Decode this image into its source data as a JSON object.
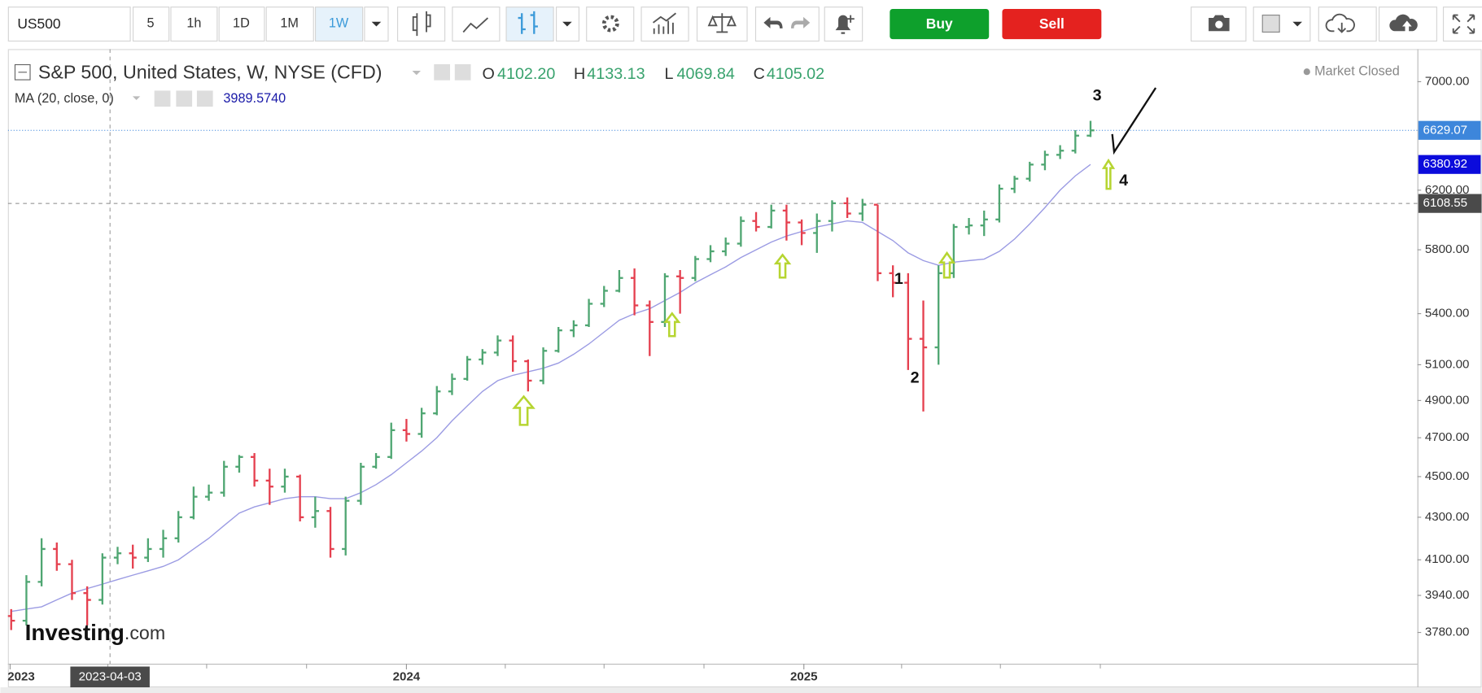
{
  "toolbar": {
    "symbol": "US500",
    "intervals": [
      "5",
      "1h",
      "1D",
      "1M",
      "1W"
    ],
    "buy": "Buy",
    "sell": "Sell"
  },
  "branding": {
    "name": "Investing",
    "suffix": ".com"
  },
  "chart_data": {
    "type": "ohlc",
    "title": "S&P 500, United States, W, NYSE (CFD)",
    "legend": {
      "o_label": "O",
      "o": {
        "value": 4102.2,
        "label": "4102.20"
      },
      "h_label": "H",
      "h": 4133.13,
      "l_label": "L",
      "l": 4069.84,
      "c_label": "C",
      "c": 4105.02
    },
    "status": "Market Closed",
    "up_color": "#4fa672",
    "down_color": "#e5404f",
    "log_scale": true,
    "x": [
      "2023-01-02",
      "2023-01-16",
      "2023-01-30",
      "2023-02-13",
      "2023-02-27",
      "2023-03-13",
      "2023-03-27",
      "2023-04-10",
      "2023-04-24",
      "2023-05-08",
      "2023-05-22",
      "2023-06-05",
      "2023-06-19",
      "2023-07-03",
      "2023-07-17",
      "2023-07-31",
      "2023-08-14",
      "2023-08-28",
      "2023-09-11",
      "2023-09-25",
      "2023-10-09",
      "2023-10-23",
      "2023-11-06",
      "2023-11-20",
      "2023-12-04",
      "2023-12-18",
      "2024-01-01",
      "2024-01-15",
      "2024-01-29",
      "2024-02-12",
      "2024-02-26",
      "2024-03-11",
      "2024-03-25",
      "2024-04-08",
      "2024-04-22",
      "2024-05-06",
      "2024-05-20",
      "2024-06-03",
      "2024-06-17",
      "2024-07-01",
      "2024-07-15",
      "2024-07-29",
      "2024-08-12",
      "2024-08-26",
      "2024-09-09",
      "2024-09-23",
      "2024-10-07",
      "2024-10-21",
      "2024-11-04",
      "2024-11-18",
      "2024-12-02",
      "2024-12-16",
      "2024-12-30",
      "2025-01-13",
      "2025-01-27",
      "2025-02-10",
      "2025-02-24",
      "2025-03-10",
      "2025-03-24",
      "2025-04-07",
      "2025-04-21",
      "2025-05-05",
      "2025-05-19",
      "2025-06-02",
      "2025-06-16",
      "2025-06-30",
      "2025-07-14",
      "2025-07-28",
      "2025-08-11",
      "2025-08-25",
      "2025-09-08",
      "2025-09-22"
    ],
    "open": [
      3850,
      3830,
      4000,
      4150,
      4080,
      3950,
      3920,
      4110,
      4130,
      4110,
      4150,
      4200,
      4300,
      4400,
      4420,
      4550,
      4600,
      4480,
      4450,
      4500,
      4300,
      4330,
      4150,
      4380,
      4550,
      4600,
      4740,
      4720,
      4830,
      4950,
      5020,
      5130,
      5170,
      5240,
      5120,
      5010,
      5180,
      5300,
      5330,
      5460,
      5540,
      5620,
      5450,
      5350,
      5630,
      5620,
      5740,
      5790,
      5840,
      5990,
      5950,
      6060,
      5980,
      5910,
      5990,
      6110,
      6040,
      6100,
      5650,
      5590,
      5250,
      5200,
      5650,
      5950,
      5960,
      6000,
      6210,
      6280,
      6380,
      6450,
      6480,
      6590
    ],
    "high": [
      3880,
      4030,
      4200,
      4180,
      4100,
      3980,
      4130,
      4160,
      4170,
      4200,
      4240,
      4330,
      4450,
      4460,
      4580,
      4610,
      4620,
      4540,
      4540,
      4510,
      4400,
      4350,
      4400,
      4570,
      4620,
      4780,
      4800,
      4860,
      4980,
      5050,
      5150,
      5190,
      5270,
      5270,
      5130,
      5200,
      5320,
      5360,
      5490,
      5570,
      5670,
      5680,
      5480,
      5650,
      5670,
      5760,
      5830,
      5880,
      6020,
      6050,
      6100,
      6100,
      6000,
      6040,
      6130,
      6150,
      6140,
      6100,
      5700,
      5650,
      5480,
      5700,
      5970,
      6010,
      6060,
      6240,
      6300,
      6400,
      6480,
      6520,
      6630,
      6700
    ],
    "low": [
      3790,
      3810,
      3980,
      4050,
      3920,
      3810,
      3900,
      4080,
      4060,
      4090,
      4110,
      4180,
      4290,
      4380,
      4400,
      4520,
      4450,
      4360,
      4420,
      4280,
      4250,
      4110,
      4120,
      4360,
      4540,
      4590,
      4680,
      4700,
      4820,
      4930,
      5010,
      5100,
      5150,
      5060,
      4950,
      4990,
      5170,
      5260,
      5320,
      5440,
      5530,
      5390,
      5150,
      5320,
      5400,
      5600,
      5720,
      5760,
      5820,
      5920,
      5940,
      5860,
      5830,
      5780,
      5920,
      6010,
      5990,
      5600,
      5500,
      5070,
      4840,
      5100,
      5620,
      5900,
      5890,
      5980,
      6180,
      6260,
      6340,
      6420,
      6460,
      6580
    ],
    "close": [
      3830,
      4000,
      4150,
      4080,
      3950,
      3920,
      4110,
      4130,
      4110,
      4150,
      4200,
      4300,
      4400,
      4420,
      4550,
      4600,
      4480,
      4450,
      4500,
      4300,
      4330,
      4150,
      4380,
      4550,
      4600,
      4740,
      4720,
      4830,
      4950,
      5020,
      5130,
      5170,
      5240,
      5120,
      5010,
      5180,
      5300,
      5330,
      5460,
      5540,
      5620,
      5450,
      5350,
      5630,
      5620,
      5740,
      5790,
      5840,
      5990,
      5950,
      6060,
      5980,
      5910,
      5990,
      6110,
      6040,
      6100,
      5650,
      5590,
      5250,
      5200,
      5650,
      5950,
      5960,
      6000,
      6210,
      6280,
      6380,
      6450,
      6480,
      6590,
      6629
    ],
    "ma": {
      "name": "MA (20, close, 0)",
      "color": "#9b9be3",
      "legend_value": {
        "value": 3989.574,
        "label": "3989.5740"
      },
      "values": [
        3870,
        3880,
        3890,
        3920,
        3950,
        3970,
        3990,
        4010,
        4030,
        4050,
        4070,
        4100,
        4150,
        4200,
        4260,
        4320,
        4350,
        4370,
        4390,
        4400,
        4400,
        4390,
        4390,
        4420,
        4460,
        4510,
        4570,
        4630,
        4700,
        4790,
        4870,
        4950,
        5010,
        5040,
        5060,
        5080,
        5110,
        5160,
        5220,
        5290,
        5360,
        5400,
        5430,
        5480,
        5530,
        5590,
        5640,
        5690,
        5750,
        5800,
        5850,
        5890,
        5920,
        5950,
        5970,
        5990,
        5980,
        5920,
        5860,
        5780,
        5730,
        5700,
        5720,
        5730,
        5740,
        5790,
        5870,
        5970,
        6080,
        6200,
        6300,
        6381
      ]
    },
    "ylim": [
      3650,
      7260
    ],
    "yticks": [
      {
        "value": 3780,
        "label": "3780.00"
      },
      {
        "value": 3940,
        "label": "3940.00"
      },
      {
        "value": 4100,
        "label": "4100.00"
      },
      {
        "value": 4300,
        "label": "4300.00"
      },
      {
        "value": 4500,
        "label": "4500.00"
      },
      {
        "value": 4700,
        "label": "4700.00"
      },
      {
        "value": 4900,
        "label": "4900.00"
      },
      {
        "value": 5100,
        "label": "5100.00"
      },
      {
        "value": 5400,
        "label": "5400.00"
      },
      {
        "value": 5800,
        "label": "5800.00"
      },
      {
        "value": 6200,
        "label": "6200.00"
      },
      {
        "value": 7000,
        "label": "7000.00"
      }
    ],
    "xlim": [
      "2022-12-30",
      "2026-07-20"
    ],
    "xticks": [
      {
        "value": "2023-01-01",
        "label": "2023"
      },
      {
        "value": "2024-01-01",
        "label": "2024"
      },
      {
        "value": "2025-01-01",
        "label": "2025"
      }
    ],
    "xminorticks": [
      "2023-04-01",
      "2023-07-01",
      "2023-10-01",
      "2024-04-01",
      "2024-07-01",
      "2024-10-01",
      "2025-04-01",
      "2025-07-01",
      "2025-10-01"
    ],
    "price_markers": [
      {
        "value": 6629.07,
        "color": "#3d86db"
      },
      {
        "value": 6380.92,
        "color": "#0b0bdc"
      }
    ],
    "crosshair": {
      "x": "2023-04-03",
      "y": 6108.55
    },
    "annotations": [
      "1",
      "2",
      "3",
      "4"
    ]
  }
}
